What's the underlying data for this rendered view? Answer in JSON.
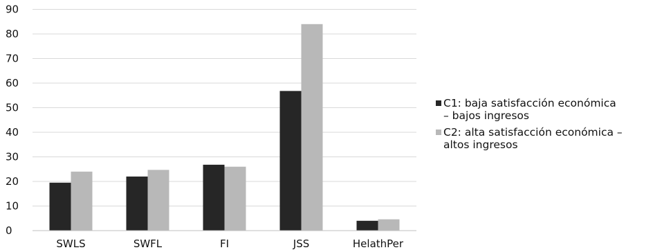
{
  "chart_data": {
    "type": "bar",
    "categories": [
      "SWLS",
      "SWFL",
      "FI",
      "JSS",
      "HelathPer"
    ],
    "series": [
      {
        "name": "C1: baja satisfacción económica – bajos ingresos",
        "color": "#262626",
        "values": [
          19.5,
          22,
          26.8,
          56.8,
          4
        ]
      },
      {
        "name": "C2: alta satisfacción económica – altos ingresos",
        "color": "#b8b8b8",
        "values": [
          24,
          24.7,
          26,
          84,
          4.6
        ]
      }
    ],
    "yticks": [
      0,
      10,
      20,
      30,
      40,
      50,
      60,
      70,
      80,
      90
    ],
    "ylim": [
      0,
      90
    ],
    "grid": true,
    "legend_position": "right"
  },
  "legend": {
    "c1_line1": "C1: baja satisfacción económica",
    "c1_line2": "– bajos ingresos",
    "c2_line1": "C2: alta satisfacción económica –",
    "c2_line2": "altos ingresos"
  }
}
